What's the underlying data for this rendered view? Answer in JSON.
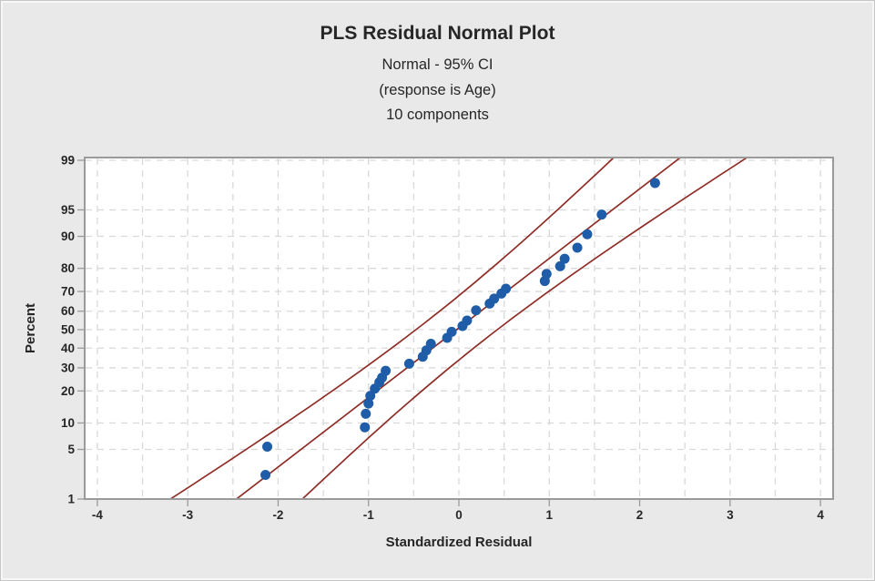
{
  "chart_data": {
    "type": "scatter",
    "title": "PLS Residual Normal Plot",
    "subtitle_ci": "Normal - 95% CI",
    "subtitle_response": "(response is Age)",
    "subtitle_components": "10 components",
    "xlabel": "Standardized Residual",
    "ylabel": "Percent",
    "x_ticks": [
      -4,
      -3,
      -2,
      -1,
      0,
      1,
      2,
      3,
      4
    ],
    "y_ticks": [
      1,
      5,
      10,
      20,
      30,
      40,
      50,
      60,
      70,
      80,
      90,
      95,
      99
    ],
    "xlim": [
      -4.14,
      4.14
    ],
    "ylim_percent": [
      1,
      99
    ],
    "y_scale": "normal-probability",
    "x_grid_step": 0.5,
    "grid_style": "dashed",
    "legend": "none",
    "points": [
      [
        -2.14,
        2.3
      ],
      [
        -2.12,
        5.4
      ],
      [
        -1.04,
        9.0
      ],
      [
        -1.03,
        12.4
      ],
      [
        -1.0,
        15.5
      ],
      [
        -0.98,
        18.2
      ],
      [
        -0.93,
        20.9
      ],
      [
        -0.88,
        23.5
      ],
      [
        -0.85,
        25.5
      ],
      [
        -0.81,
        28.6
      ],
      [
        -0.55,
        32.0
      ],
      [
        -0.4,
        35.5
      ],
      [
        -0.36,
        38.8
      ],
      [
        -0.31,
        42.3
      ],
      [
        -0.13,
        45.5
      ],
      [
        -0.08,
        48.8
      ],
      [
        0.04,
        52.0
      ],
      [
        0.09,
        55.0
      ],
      [
        0.19,
        60.5
      ],
      [
        0.34,
        64.0
      ],
      [
        0.39,
        66.5
      ],
      [
        0.47,
        69.0
      ],
      [
        0.52,
        71.3
      ],
      [
        0.95,
        74.8
      ],
      [
        0.97,
        77.8
      ],
      [
        1.12,
        80.8
      ],
      [
        1.17,
        83.5
      ],
      [
        1.31,
        87.0
      ],
      [
        1.42,
        90.5
      ],
      [
        1.58,
        94.3
      ],
      [
        2.17,
        97.8
      ]
    ],
    "fit_line": {
      "mean": -0.025,
      "sd": 1.047,
      "x_at_p1": -2.46,
      "x_at_p99": 2.41
    },
    "ci_lines": {
      "level": "95% CI",
      "half_width_at_p50": 0.45,
      "half_width_at_p1_p99": 0.73,
      "lower_x_at_p1": -3.19,
      "lower_x_at_p99": 1.7,
      "upper_x_at_p1": -1.73,
      "upper_x_at_p99": 3.15
    },
    "colors": {
      "point": "#1f5da8",
      "line": "#8f2d27",
      "grid": "#d9d9d9",
      "frame": "#9a9a9a",
      "tick": "#9a9a9a",
      "plot_bg": "#ffffff",
      "window_bg": "#e9e9e9",
      "text": "#262626"
    }
  }
}
